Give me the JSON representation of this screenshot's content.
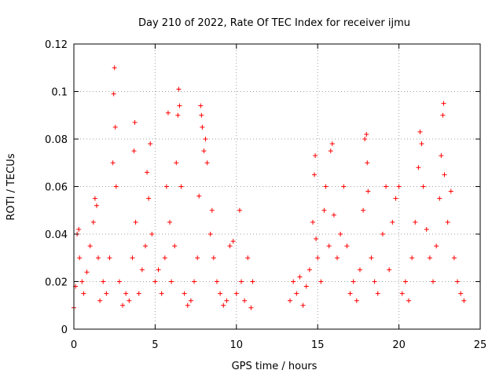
{
  "chart_data": {
    "type": "scatter",
    "title": "Day 210 of 2022, Rate Of TEC Index for receiver ijmu",
    "xlabel": "GPS time / hours",
    "ylabel": "ROTI / TECUs",
    "xlim": [
      0,
      25
    ],
    "ylim": [
      0,
      0.12
    ],
    "xticks": [
      "0",
      "5",
      "10",
      "15",
      "20",
      "25"
    ],
    "yticks": [
      "0",
      "0.02",
      "0.04",
      "0.06",
      "0.08",
      "0.1",
      "0.12"
    ],
    "grid": true,
    "legend": "none",
    "marker": "plus",
    "color": "#ff0000",
    "series": [
      {
        "points": [
          [
            0.0,
            0.009
          ],
          [
            0.1,
            0.018
          ],
          [
            0.2,
            0.04
          ],
          [
            0.3,
            0.042
          ],
          [
            0.35,
            0.03
          ],
          [
            0.5,
            0.02
          ],
          [
            0.6,
            0.015
          ],
          [
            0.8,
            0.024
          ],
          [
            1.0,
            0.035
          ],
          [
            1.2,
            0.045
          ],
          [
            1.3,
            0.055
          ],
          [
            1.4,
            0.052
          ],
          [
            1.5,
            0.03
          ],
          [
            1.6,
            0.012
          ],
          [
            1.8,
            0.02
          ],
          [
            2.0,
            0.015
          ],
          [
            2.2,
            0.03
          ],
          [
            2.4,
            0.07
          ],
          [
            2.45,
            0.099
          ],
          [
            2.5,
            0.11
          ],
          [
            2.55,
            0.085
          ],
          [
            2.6,
            0.06
          ],
          [
            2.8,
            0.02
          ],
          [
            3.0,
            0.01
          ],
          [
            3.2,
            0.015
          ],
          [
            3.4,
            0.012
          ],
          [
            3.6,
            0.03
          ],
          [
            3.7,
            0.075
          ],
          [
            3.75,
            0.087
          ],
          [
            3.8,
            0.045
          ],
          [
            4.0,
            0.015
          ],
          [
            4.2,
            0.025
          ],
          [
            4.4,
            0.035
          ],
          [
            4.5,
            0.066
          ],
          [
            4.6,
            0.055
          ],
          [
            4.7,
            0.078
          ],
          [
            4.8,
            0.04
          ],
          [
            5.0,
            0.02
          ],
          [
            5.2,
            0.025
          ],
          [
            5.4,
            0.015
          ],
          [
            5.6,
            0.03
          ],
          [
            5.7,
            0.06
          ],
          [
            5.8,
            0.091
          ],
          [
            5.9,
            0.045
          ],
          [
            6.0,
            0.02
          ],
          [
            6.2,
            0.035
          ],
          [
            6.3,
            0.07
          ],
          [
            6.4,
            0.09
          ],
          [
            6.45,
            0.101
          ],
          [
            6.5,
            0.094
          ],
          [
            6.6,
            0.06
          ],
          [
            6.8,
            0.015
          ],
          [
            7.0,
            0.01
          ],
          [
            7.2,
            0.012
          ],
          [
            7.4,
            0.02
          ],
          [
            7.6,
            0.03
          ],
          [
            7.7,
            0.056
          ],
          [
            7.8,
            0.094
          ],
          [
            7.85,
            0.09
          ],
          [
            7.9,
            0.085
          ],
          [
            8.0,
            0.075
          ],
          [
            8.1,
            0.08
          ],
          [
            8.2,
            0.07
          ],
          [
            8.4,
            0.04
          ],
          [
            8.5,
            0.05
          ],
          [
            8.6,
            0.03
          ],
          [
            8.8,
            0.02
          ],
          [
            9.0,
            0.015
          ],
          [
            9.2,
            0.01
          ],
          [
            9.4,
            0.012
          ],
          [
            9.6,
            0.035
          ],
          [
            9.8,
            0.037
          ],
          [
            10.0,
            0.015
          ],
          [
            10.2,
            0.05
          ],
          [
            10.3,
            0.02
          ],
          [
            10.5,
            0.012
          ],
          [
            10.7,
            0.03
          ],
          [
            10.9,
            0.009
          ],
          [
            11.0,
            0.02
          ],
          [
            13.3,
            0.012
          ],
          [
            13.5,
            0.02
          ],
          [
            13.7,
            0.015
          ],
          [
            13.9,
            0.022
          ],
          [
            14.1,
            0.01
          ],
          [
            14.3,
            0.018
          ],
          [
            14.5,
            0.025
          ],
          [
            14.7,
            0.045
          ],
          [
            14.8,
            0.065
          ],
          [
            14.85,
            0.073
          ],
          [
            14.9,
            0.038
          ],
          [
            15.0,
            0.03
          ],
          [
            15.2,
            0.02
          ],
          [
            15.4,
            0.05
          ],
          [
            15.5,
            0.06
          ],
          [
            15.7,
            0.035
          ],
          [
            15.8,
            0.075
          ],
          [
            15.9,
            0.078
          ],
          [
            16.0,
            0.048
          ],
          [
            16.2,
            0.03
          ],
          [
            16.4,
            0.04
          ],
          [
            16.6,
            0.06
          ],
          [
            16.8,
            0.035
          ],
          [
            17.0,
            0.015
          ],
          [
            17.2,
            0.02
          ],
          [
            17.4,
            0.012
          ],
          [
            17.6,
            0.025
          ],
          [
            17.8,
            0.05
          ],
          [
            17.9,
            0.08
          ],
          [
            18.0,
            0.082
          ],
          [
            18.05,
            0.07
          ],
          [
            18.1,
            0.058
          ],
          [
            18.3,
            0.03
          ],
          [
            18.5,
            0.02
          ],
          [
            18.7,
            0.015
          ],
          [
            19.0,
            0.04
          ],
          [
            19.2,
            0.06
          ],
          [
            19.4,
            0.025
          ],
          [
            19.6,
            0.045
          ],
          [
            19.8,
            0.055
          ],
          [
            20.0,
            0.06
          ],
          [
            20.2,
            0.015
          ],
          [
            20.4,
            0.02
          ],
          [
            20.6,
            0.012
          ],
          [
            20.8,
            0.03
          ],
          [
            21.0,
            0.045
          ],
          [
            21.2,
            0.068
          ],
          [
            21.3,
            0.083
          ],
          [
            21.4,
            0.078
          ],
          [
            21.5,
            0.06
          ],
          [
            21.7,
            0.042
          ],
          [
            21.9,
            0.03
          ],
          [
            22.1,
            0.02
          ],
          [
            22.3,
            0.035
          ],
          [
            22.5,
            0.055
          ],
          [
            22.6,
            0.073
          ],
          [
            22.7,
            0.09
          ],
          [
            22.75,
            0.095
          ],
          [
            22.8,
            0.065
          ],
          [
            23.0,
            0.045
          ],
          [
            23.2,
            0.058
          ],
          [
            23.4,
            0.03
          ],
          [
            23.6,
            0.02
          ],
          [
            23.8,
            0.015
          ],
          [
            24.0,
            0.012
          ]
        ]
      }
    ]
  }
}
